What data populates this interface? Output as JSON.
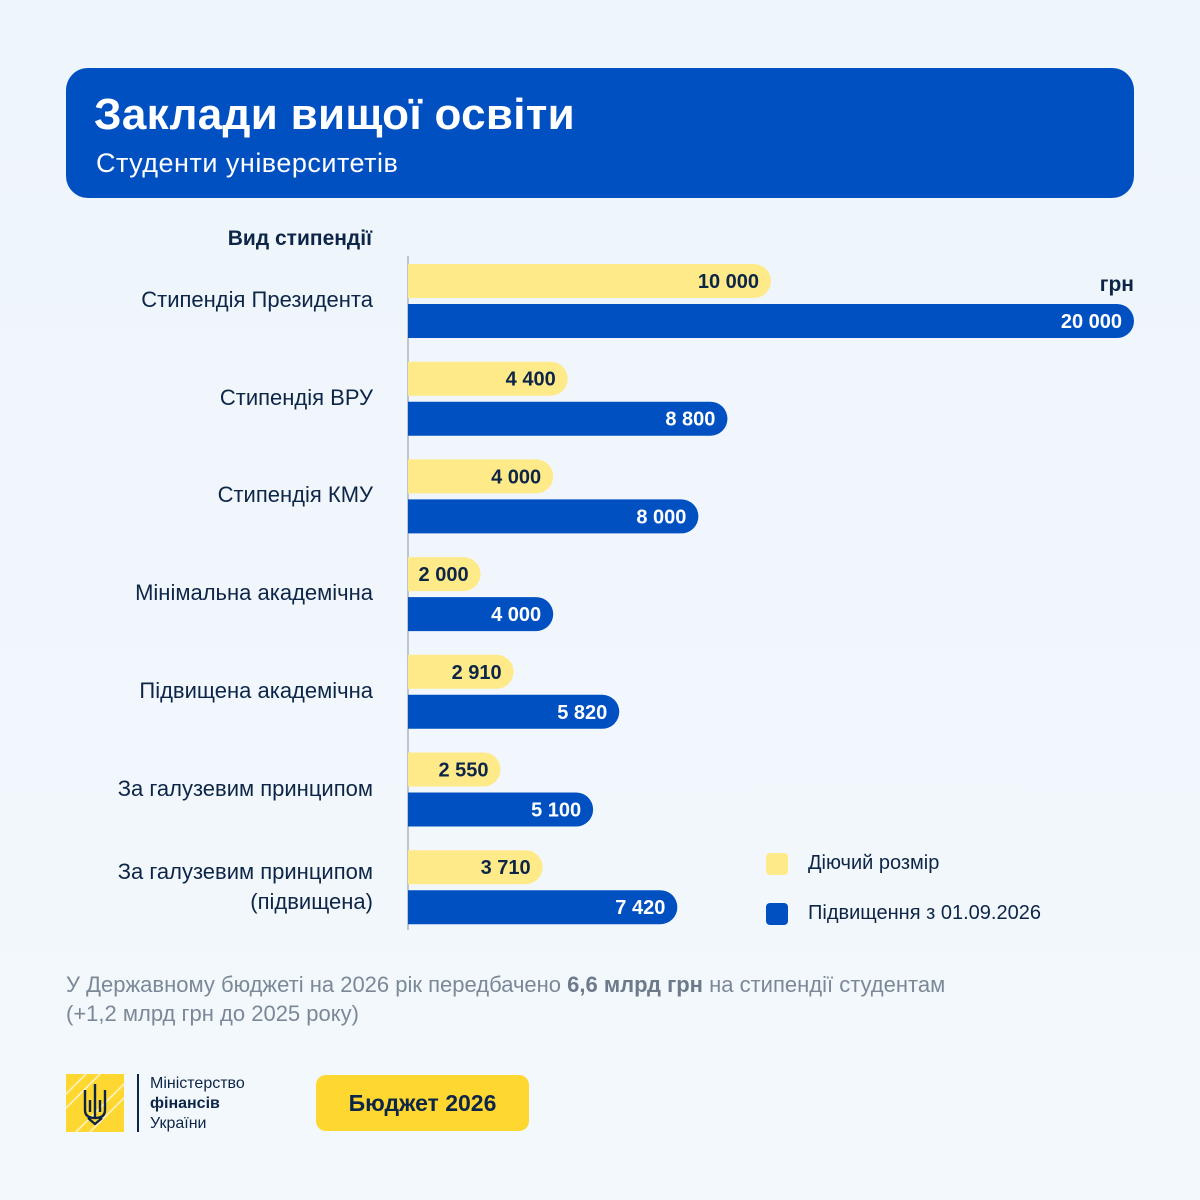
{
  "header": {
    "title": "Заклади вищої освіти",
    "subtitle": "Студенти університетів"
  },
  "category_header": "Вид стипендії",
  "unit": "грн",
  "colors": {
    "current": "#ffea8a",
    "increase": "#0050c2",
    "text_dark": "#0d2547"
  },
  "chart_data": {
    "type": "bar",
    "orientation": "horizontal",
    "categories": [
      "Стипендія Президента",
      "Стипендія ВРУ",
      "Стипендія КМУ",
      "Мінімальна академічна",
      "Підвищена академічна",
      "За галузевим принципом",
      "За галузевим принципом (підвищена)"
    ],
    "series": [
      {
        "name": "Діючий розмір",
        "values": [
          10000,
          4400,
          4000,
          2000,
          2910,
          2550,
          3710
        ],
        "labels": [
          "10 000",
          "4 400",
          "4 000",
          "2 000",
          "2 910",
          "2 550",
          "3 710"
        ]
      },
      {
        "name": "Підвищення з 01.09.2026",
        "values": [
          20000,
          8800,
          8000,
          4000,
          5820,
          5100,
          7420
        ],
        "labels": [
          "20 000",
          "8 800",
          "8 000",
          "4 000",
          "5 820",
          "5 100",
          "7 420"
        ]
      }
    ],
    "xlim": [
      0,
      20000
    ],
    "legend_position": "bottom-right",
    "grid": false
  },
  "note": {
    "before": "У Державному бюджеті на 2026 рік передбачено ",
    "bold": "6,6 млрд грн",
    "after": " на стипендії студентам",
    "line2": "(+1,2 млрд грн до 2025 року)"
  },
  "footer": {
    "ministry_line1": "Міністерство",
    "ministry_line2": "фінансів",
    "ministry_line3": "України",
    "logo_icon": "trident-icon",
    "budget_label": "Бюджет 2026"
  }
}
